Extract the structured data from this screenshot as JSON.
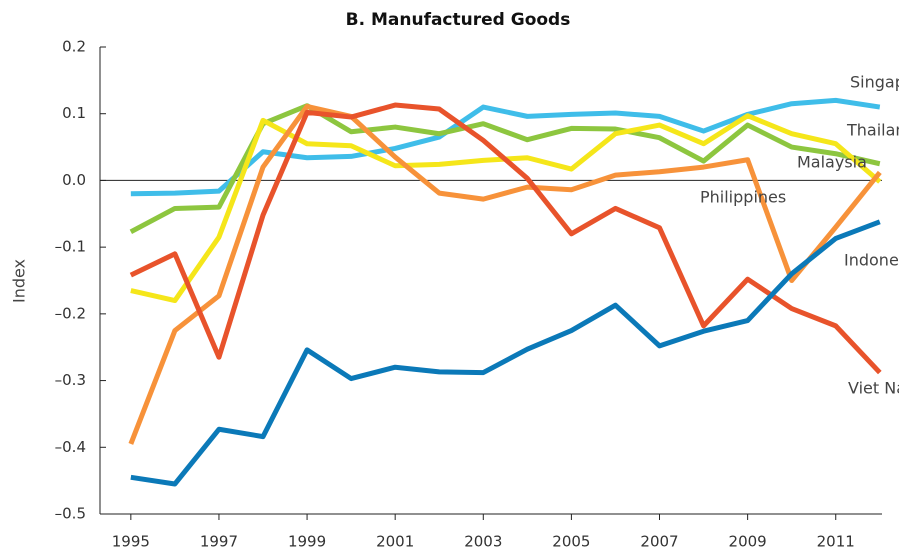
{
  "chart_data": {
    "type": "line",
    "title": "B. Manufactured Goods",
    "y_label": "Index",
    "x": [
      1995,
      1996,
      1997,
      1998,
      1999,
      2000,
      2001,
      2002,
      2003,
      2004,
      2005,
      2006,
      2007,
      2008,
      2009,
      2010,
      2011,
      2012
    ],
    "xlim": [
      1994.3,
      2012.05
    ],
    "xticks": [
      1995,
      1997,
      1999,
      2001,
      2003,
      2005,
      2007,
      2009,
      2011
    ],
    "ylim": [
      -0.5,
      0.2
    ],
    "yticks": [
      {
        "value": -0.5,
        "label": "–0.5"
      },
      {
        "value": -0.4,
        "label": "–0.4"
      },
      {
        "value": -0.3,
        "label": "–0.3"
      },
      {
        "value": -0.2,
        "label": "–0.2"
      },
      {
        "value": -0.1,
        "label": "–0.1"
      },
      {
        "value": 0,
        "label": "0.0"
      },
      0.1,
      0.2
    ],
    "zero_line": true,
    "series": [
      {
        "name": "Singapore",
        "color": "#3fbde9",
        "values": [
          -0.02,
          -0.019,
          -0.016,
          0.043,
          0.034,
          0.036,
          0.048,
          0.065,
          0.11,
          0.096,
          0.099,
          0.101,
          0.096,
          0.074,
          0.099,
          0.115,
          0.12,
          0.11
        ]
      },
      {
        "name": "Thailand",
        "color": "#8dc63f",
        "values": [
          -0.077,
          -0.042,
          -0.04,
          0.085,
          0.112,
          0.073,
          0.08,
          0.07,
          0.085,
          0.061,
          0.078,
          0.077,
          0.064,
          0.029,
          0.083,
          0.05,
          0.04,
          0.025
        ]
      },
      {
        "name": "Malaysia",
        "color": "#f5e61a",
        "values": [
          -0.165,
          -0.18,
          -0.085,
          0.09,
          0.055,
          0.052,
          0.022,
          0.024,
          0.03,
          0.034,
          0.017,
          0.07,
          0.083,
          0.055,
          0.097,
          0.07,
          0.055,
          -0.002
        ]
      },
      {
        "name": "Philippines",
        "color": "#f7923a",
        "values": [
          -0.395,
          -0.225,
          -0.173,
          0.02,
          0.111,
          0.096,
          0.035,
          -0.019,
          -0.028,
          -0.01,
          -0.014,
          0.008,
          0.013,
          0.02,
          0.031,
          -0.15,
          -0.07,
          0.012
        ]
      },
      {
        "name": "Indonesia",
        "color": "#e8532b",
        "values": [
          -0.142,
          -0.11,
          -0.265,
          -0.052,
          0.102,
          0.095,
          0.113,
          0.107,
          0.06,
          0.003,
          -0.08,
          -0.042,
          -0.071,
          -0.218,
          -0.148,
          -0.192,
          -0.218,
          -0.288
        ]
      },
      {
        "name": "Viet Nam",
        "color": "#0b79b8",
        "values": [
          -0.445,
          -0.455,
          -0.373,
          -0.384,
          -0.254,
          -0.297,
          -0.28,
          -0.287,
          -0.288,
          -0.253,
          -0.225,
          -0.187,
          -0.248,
          -0.226,
          -0.21,
          -0.14,
          -0.087,
          -0.062
        ]
      }
    ]
  }
}
